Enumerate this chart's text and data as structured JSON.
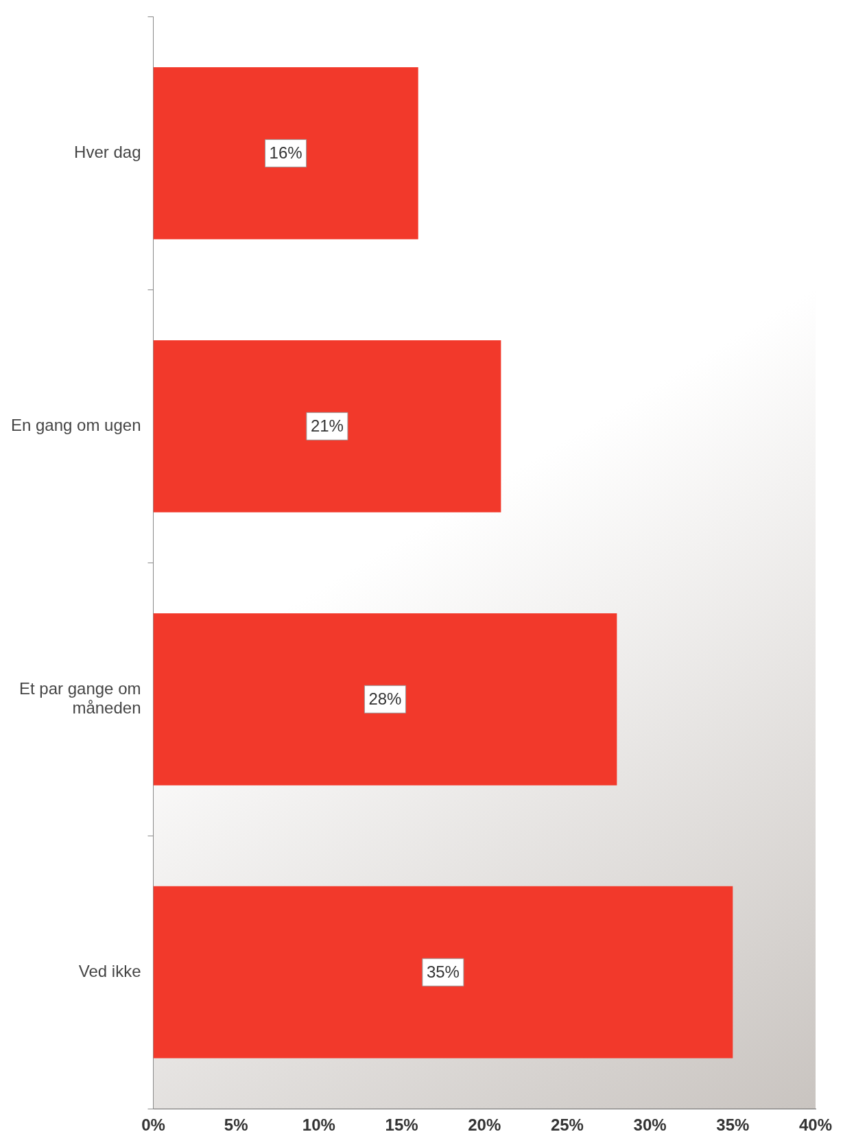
{
  "chart_data": {
    "type": "bar",
    "orientation": "horizontal",
    "categories": [
      "Hver dag",
      "En gang om ugen",
      "Et par gange om måneden",
      "Ved ikke"
    ],
    "values": [
      16,
      21,
      28,
      35
    ],
    "color": "#f2392b",
    "value_labels": [
      "16%",
      "21%",
      "28%",
      "35%"
    ],
    "xlim": [
      0,
      40
    ],
    "xticks": [
      {
        "value": 0,
        "label": "0%"
      },
      {
        "value": 5,
        "label": "5%"
      },
      {
        "value": 10,
        "label": "10%"
      },
      {
        "value": 15,
        "label": "15%"
      },
      {
        "value": 20,
        "label": "20%"
      },
      {
        "value": 25,
        "label": "25%"
      },
      {
        "value": 30,
        "label": "30%"
      },
      {
        "value": 35,
        "label": "35%"
      },
      {
        "value": 40,
        "label": "40%"
      }
    ],
    "legend": false
  }
}
